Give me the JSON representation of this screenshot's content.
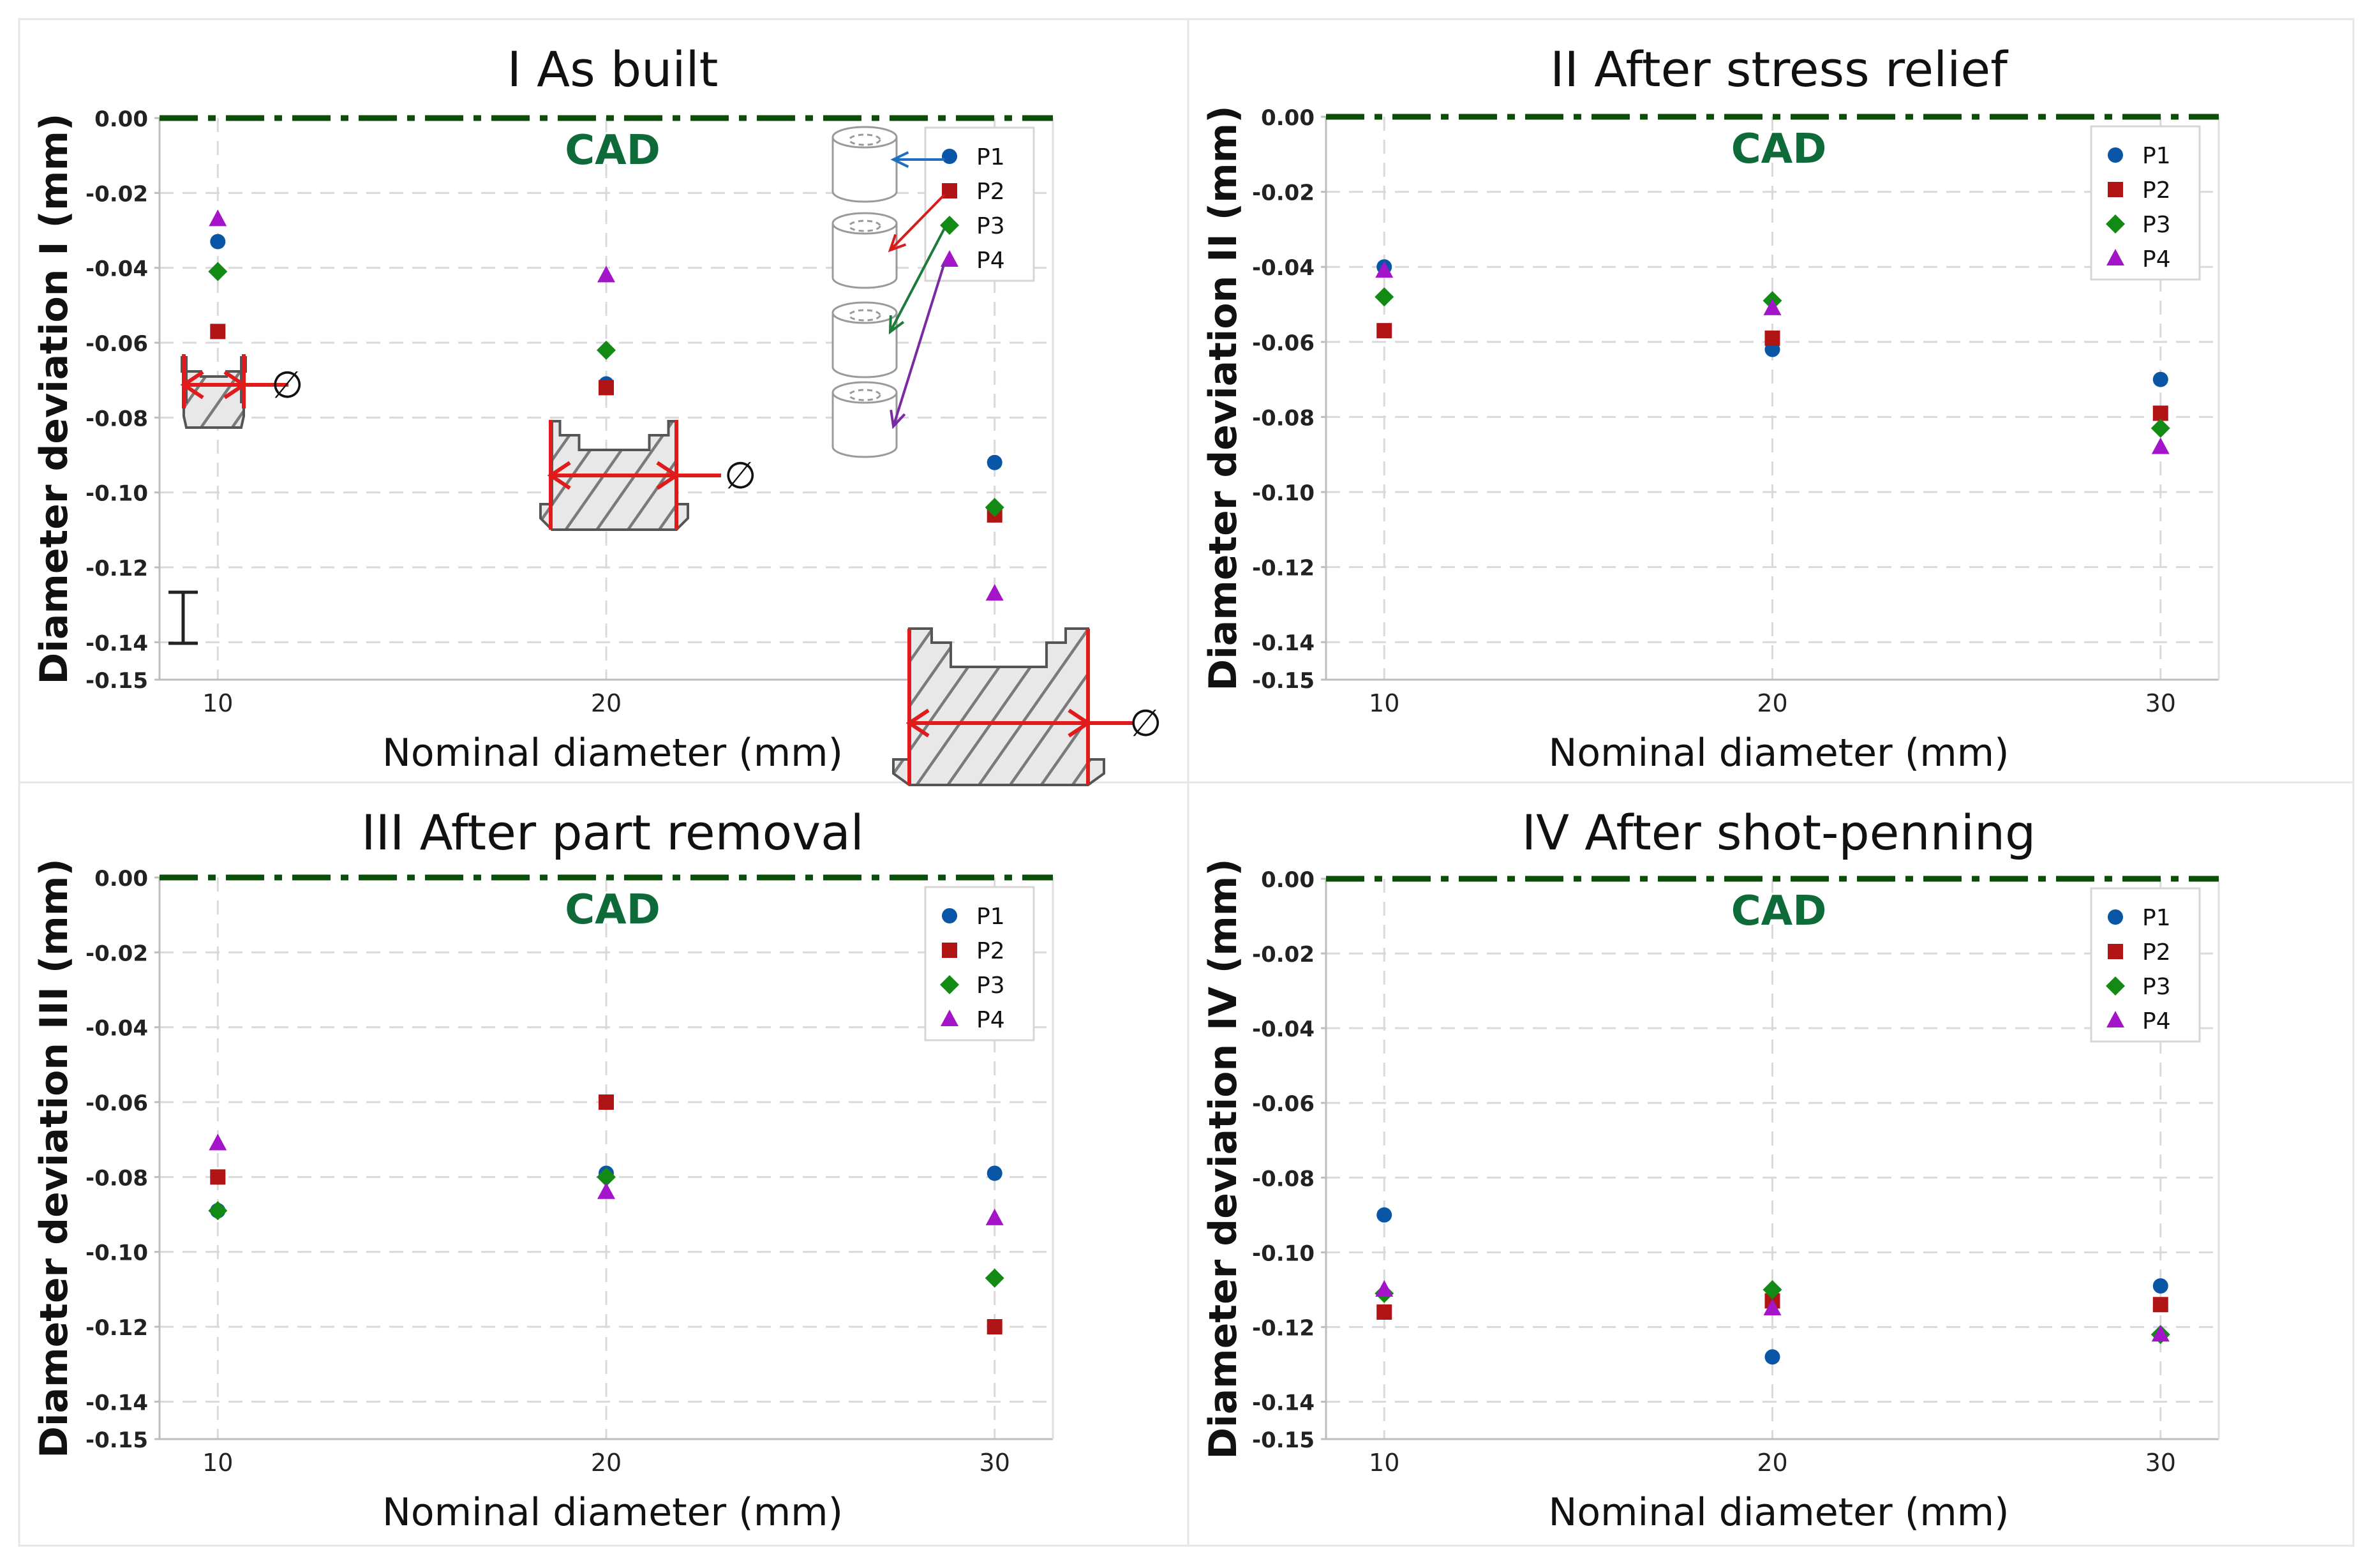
{
  "figure": {
    "colors": {
      "P1": "#0a56a6",
      "P2": "#b01414",
      "P3": "#138a13",
      "P4": "#a414c9",
      "cad_line": "#0b4f0b",
      "cad_text": "#0f6a3a",
      "grid": "#d9d9d9",
      "arrow_P1": "#1f6fc0",
      "arrow_P2": "#d81c1c",
      "arrow_P3": "#1c7a3a",
      "arrow_P4": "#7a2aa3"
    },
    "insets": {
      "diameter_symbol": "∅"
    }
  },
  "chart_data": [
    {
      "type": "scatter",
      "title": "I As built",
      "xlabel": "Nominal diameter (mm)",
      "ylabel": "Diameter deviation I (mm)",
      "ylim": [
        -0.15,
        0.0
      ],
      "yticks": [
        "0.00",
        "-0.02",
        "-0.04",
        "-0.06",
        "-0.08",
        "-0.10",
        "-0.12",
        "-0.14",
        "-0.15"
      ],
      "xticks": [
        "10",
        "20",
        "30"
      ],
      "categories": [
        10,
        20,
        30
      ],
      "reference_label": "CAD",
      "reference_value": 0.0,
      "legend_position": "top-right",
      "series": [
        {
          "name": "P1",
          "marker": "circle",
          "values": [
            -0.033,
            -0.071,
            -0.092
          ]
        },
        {
          "name": "P2",
          "marker": "square",
          "values": [
            -0.057,
            -0.072,
            -0.106
          ]
        },
        {
          "name": "P3",
          "marker": "diamond",
          "values": [
            -0.041,
            -0.062,
            -0.104
          ]
        },
        {
          "name": "P4",
          "marker": "triangle",
          "values": [
            -0.027,
            -0.042,
            -0.127
          ]
        }
      ]
    },
    {
      "type": "scatter",
      "title": "II After stress relief",
      "xlabel": "Nominal diameter (mm)",
      "ylabel": "Diameter deviation II (mm)",
      "ylim": [
        -0.15,
        0.0
      ],
      "yticks": [
        "0.00",
        "-0.02",
        "-0.04",
        "-0.06",
        "-0.08",
        "-0.10",
        "-0.12",
        "-0.14",
        "-0.15"
      ],
      "xticks": [
        "10",
        "20",
        "30"
      ],
      "categories": [
        10,
        20,
        30
      ],
      "reference_label": "CAD",
      "reference_value": 0.0,
      "legend_position": "top-right",
      "series": [
        {
          "name": "P1",
          "marker": "circle",
          "values": [
            -0.04,
            -0.062,
            -0.07
          ]
        },
        {
          "name": "P2",
          "marker": "square",
          "values": [
            -0.057,
            -0.059,
            -0.079
          ]
        },
        {
          "name": "P3",
          "marker": "diamond",
          "values": [
            -0.048,
            -0.049,
            -0.083
          ]
        },
        {
          "name": "P4",
          "marker": "triangle",
          "values": [
            -0.041,
            -0.051,
            -0.088
          ]
        }
      ]
    },
    {
      "type": "scatter",
      "title": "III After part removal",
      "xlabel": "Nominal diameter (mm)",
      "ylabel": "Diameter deviation III (mm)",
      "ylim": [
        -0.15,
        0.0
      ],
      "yticks": [
        "0.00",
        "-0.02",
        "-0.04",
        "-0.06",
        "-0.08",
        "-0.10",
        "-0.12",
        "-0.14",
        "-0.15"
      ],
      "xticks": [
        "10",
        "20",
        "30"
      ],
      "categories": [
        10,
        20,
        30
      ],
      "reference_label": "CAD",
      "reference_value": 0.0,
      "legend_position": "top-right",
      "series": [
        {
          "name": "P1",
          "marker": "circle",
          "values": [
            -0.089,
            -0.079,
            -0.079
          ]
        },
        {
          "name": "P2",
          "marker": "square",
          "values": [
            -0.08,
            -0.06,
            -0.12
          ]
        },
        {
          "name": "P3",
          "marker": "diamond",
          "values": [
            -0.089,
            -0.08,
            -0.107
          ]
        },
        {
          "name": "P4",
          "marker": "triangle",
          "values": [
            -0.071,
            -0.084,
            -0.091
          ]
        }
      ]
    },
    {
      "type": "scatter",
      "title": "IV After shot-penning",
      "xlabel": "Nominal diameter (mm)",
      "ylabel": "Diameter deviation IV (mm)",
      "ylim": [
        -0.15,
        0.0
      ],
      "yticks": [
        "0.00",
        "-0.02",
        "-0.04",
        "-0.06",
        "-0.08",
        "-0.10",
        "-0.12",
        "-0.14",
        "-0.15"
      ],
      "xticks": [
        "10",
        "20",
        "30"
      ],
      "categories": [
        10,
        20,
        30
      ],
      "reference_label": "CAD",
      "reference_value": 0.0,
      "legend_position": "top-right",
      "series": [
        {
          "name": "P1",
          "marker": "circle",
          "values": [
            -0.09,
            -0.128,
            -0.109
          ]
        },
        {
          "name": "P2",
          "marker": "square",
          "values": [
            -0.116,
            -0.113,
            -0.114
          ]
        },
        {
          "name": "P3",
          "marker": "diamond",
          "values": [
            -0.111,
            -0.11,
            -0.122
          ]
        },
        {
          "name": "P4",
          "marker": "triangle",
          "values": [
            -0.11,
            -0.115,
            -0.122
          ]
        }
      ]
    }
  ]
}
